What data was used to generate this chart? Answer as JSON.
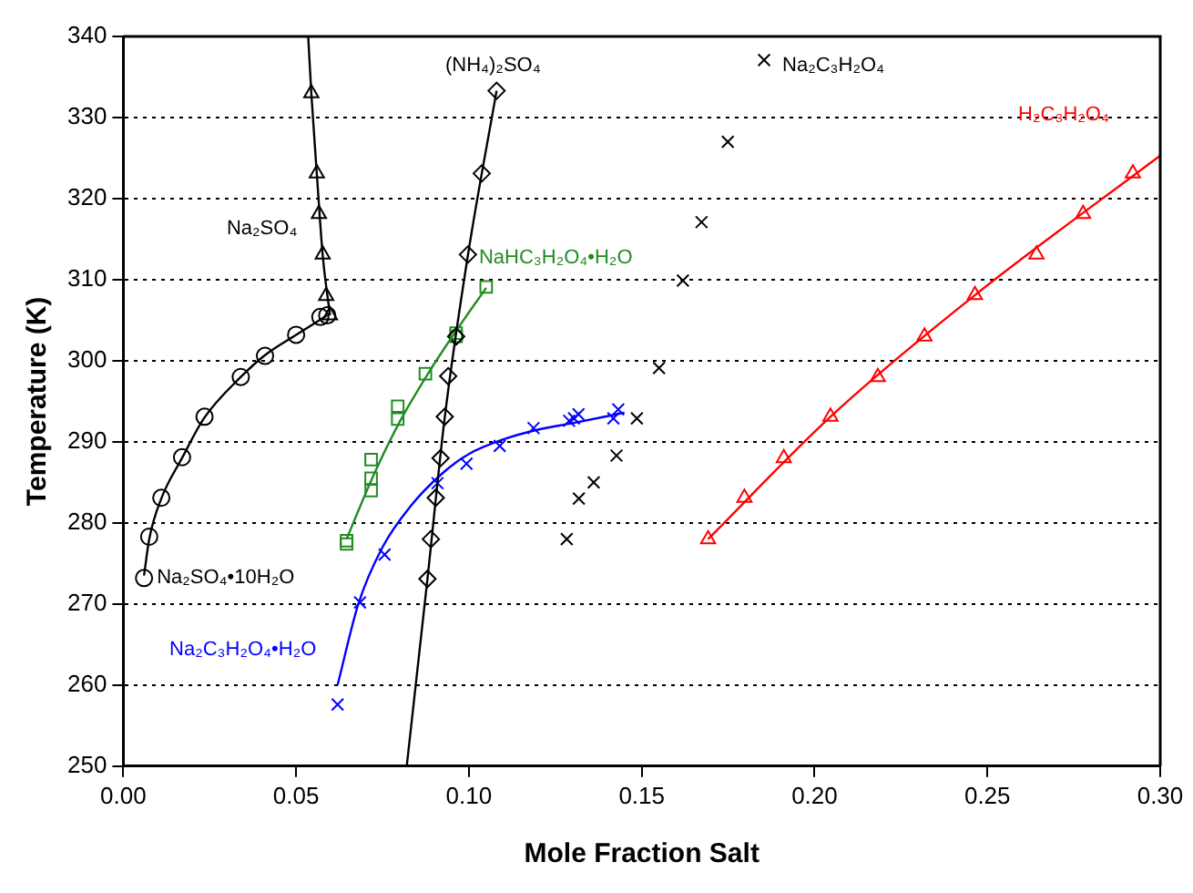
{
  "chart_data": {
    "type": "scatter",
    "xlabel": "Mole Fraction Salt",
    "ylabel": "Temperature (K)",
    "xlim": [
      0,
      0.3
    ],
    "ylim": [
      250,
      340
    ],
    "xticks": [
      {
        "value": 0,
        "label": "0.00"
      },
      {
        "value": 0.05,
        "label": "0.05"
      },
      {
        "value": 0.1,
        "label": "0.10"
      },
      {
        "value": 0.15,
        "label": "0.15"
      },
      {
        "value": 0.2,
        "label": "0.20"
      },
      {
        "value": 0.25,
        "label": "0.25"
      },
      {
        "value": 0.3,
        "label": "0.30"
      }
    ],
    "yticks": [
      250,
      260,
      270,
      280,
      290,
      300,
      310,
      320,
      330,
      340
    ],
    "grid": "y",
    "legend": false,
    "series": [
      {
        "type": "line",
        "color": "#000000",
        "marker": "none",
        "x": [
          0.006,
          0.0075,
          0.011,
          0.017,
          0.0235,
          0.034,
          0.041,
          0.05,
          0.059
        ],
        "values": [
          273.5,
          278,
          283,
          288,
          293,
          298,
          300.7,
          303.2,
          305.6
        ]
      },
      {
        "type": "line",
        "color": "#000000",
        "marker": "none",
        "x": [
          0.0535,
          0.0544,
          0.056,
          0.0577,
          0.0598
        ],
        "values": [
          340,
          333,
          323,
          313,
          305.6
        ]
      },
      {
        "type": "line",
        "color": "#000000",
        "marker": "none",
        "x": [
          0.082,
          0.088,
          0.093,
          0.0997,
          0.108
        ],
        "values": [
          250,
          273.1,
          293,
          313,
          333.3
        ]
      },
      {
        "type": "line",
        "color": "#228b22",
        "marker": "none",
        "x": [
          0.0646,
          0.072,
          0.08,
          0.088,
          0.096,
          0.105
        ],
        "values": [
          278,
          285.5,
          292.5,
          298.3,
          303.5,
          309
        ]
      },
      {
        "type": "line",
        "color": "#0000ff",
        "marker": "none",
        "x": [
          0.062,
          0.068,
          0.075,
          0.083,
          0.092,
          0.1,
          0.11,
          0.12,
          0.13,
          0.145
        ],
        "values": [
          260,
          270,
          277,
          282,
          286,
          288.5,
          290.3,
          291.5,
          292.3,
          293.6
        ]
      },
      {
        "type": "line",
        "color": "#ff0000",
        "marker": "none",
        "x": [
          0.1692,
          0.2046,
          0.2464,
          0.3
        ],
        "values": [
          278,
          293.1,
          308.1,
          325.3
        ]
      },
      {
        "name": "Na₂SO₄•10H₂O",
        "color": "#000000",
        "marker": "circle",
        "x": [
          0.006,
          0.0075,
          0.011,
          0.017,
          0.0235,
          0.034,
          0.041,
          0.05,
          0.057,
          0.059
        ],
        "values": [
          273.2,
          278.3,
          283.1,
          288.1,
          293.1,
          298.0,
          300.6,
          303.2,
          305.4,
          305.6
        ]
      },
      {
        "name": "Na₂SO₄",
        "color": "#000000",
        "marker": "triangle",
        "x": [
          0.0544,
          0.056,
          0.0566,
          0.0577,
          0.0587,
          0.0598
        ],
        "values": [
          333.0,
          323.1,
          318.1,
          313.1,
          308.0,
          305.6
        ]
      },
      {
        "name": "(NH₄)₂SO₄",
        "color": "#000000",
        "marker": "diamond",
        "x": [
          0.108,
          0.1037,
          0.0997,
          0.0963,
          0.094,
          0.093,
          0.0918,
          0.0904,
          0.089,
          0.088
        ],
        "values": [
          333.3,
          323.1,
          313.1,
          303.0,
          298.1,
          293.1,
          288.0,
          283.1,
          278.0,
          273.1
        ]
      },
      {
        "name": "NaHC₃H₂O₄•H₂O",
        "color": "#228b22",
        "marker": "square",
        "x": [
          0.105,
          0.0963,
          0.0963,
          0.0874,
          0.0794,
          0.0794,
          0.0717,
          0.0717,
          0.0717,
          0.0646,
          0.0646
        ],
        "values": [
          309.1,
          303.0,
          303.4,
          298.4,
          294.4,
          292.8,
          287.8,
          285.5,
          284.0,
          277.8,
          277.4
        ]
      },
      {
        "name": "Na₂C₃H₂O₄•H₂O",
        "color": "#0000ff",
        "marker": "cross",
        "x": [
          0.062,
          0.0685,
          0.0756,
          0.0909,
          0.0993,
          0.1089,
          0.1187,
          0.129,
          0.1304,
          0.1317,
          0.1418,
          0.1432
        ],
        "values": [
          257.6,
          270.2,
          276.1,
          284.9,
          287.3,
          289.5,
          291.7,
          292.6,
          292.9,
          293.4,
          292.9,
          294.0
        ]
      },
      {
        "name": "Na₂C₃H₂O₄",
        "color": "#000000",
        "marker": "cross",
        "x": [
          0.1283,
          0.1318,
          0.1361,
          0.1427,
          0.1486,
          0.155,
          0.1619,
          0.1673,
          0.1749,
          0.1854
        ],
        "values": [
          278.0,
          283.0,
          285.0,
          288.3,
          292.9,
          299.1,
          309.9,
          317.1,
          327.0,
          337.1
        ]
      },
      {
        "name": "H₂C₃H₂O₄",
        "color": "#ff0000",
        "marker": "triangle",
        "x": [
          0.1692,
          0.1797,
          0.1911,
          0.2046,
          0.2183,
          0.2318,
          0.2464,
          0.2642,
          0.2777,
          0.2921
        ],
        "values": [
          278.0,
          283.1,
          288.0,
          293.1,
          298.0,
          303.0,
          308.1,
          313.1,
          318.1,
          323.1
        ]
      }
    ]
  }
}
